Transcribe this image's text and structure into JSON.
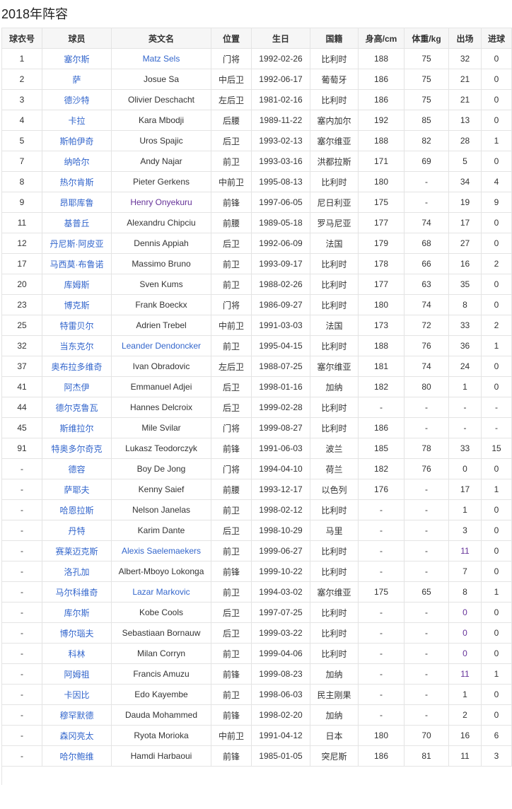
{
  "title": "2018年阵容",
  "headers": [
    "球衣号",
    "球员",
    "英文名",
    "位置",
    "生日",
    "国籍",
    "身高/cm",
    "体重/kg",
    "出场",
    "进球"
  ],
  "colors": {
    "link": "#3366cc",
    "visited": "#663399"
  },
  "rows": [
    [
      "1",
      "塞尔斯",
      "Matz Sels",
      "门将",
      "1992-02-26",
      "比利时",
      "188",
      "75",
      "32",
      "0",
      "link",
      ""
    ],
    [
      "2",
      "萨",
      "Josue Sa",
      "中后卫",
      "1992-06-17",
      "葡萄牙",
      "186",
      "75",
      "21",
      "0",
      "",
      ""
    ],
    [
      "3",
      "德沙特",
      "Olivier Deschacht",
      "左后卫",
      "1981-02-16",
      "比利时",
      "186",
      "75",
      "21",
      "0",
      "",
      ""
    ],
    [
      "4",
      "卡拉",
      "Kara Mbodji",
      "后腰",
      "1989-11-22",
      "塞内加尔",
      "192",
      "85",
      "13",
      "0",
      "",
      ""
    ],
    [
      "5",
      "斯帕伊奇",
      "Uros Spajic",
      "后卫",
      "1993-02-13",
      "塞尔维亚",
      "188",
      "82",
      "28",
      "1",
      "",
      ""
    ],
    [
      "7",
      "纳哈尔",
      "Andy Najar",
      "前卫",
      "1993-03-16",
      "洪都拉斯",
      "171",
      "69",
      "5",
      "0",
      "",
      ""
    ],
    [
      "8",
      "热尔肯斯",
      "Pieter Gerkens",
      "中前卫",
      "1995-08-13",
      "比利时",
      "180",
      "-",
      "34",
      "4",
      "",
      ""
    ],
    [
      "9",
      "昂耶库鲁",
      "Henry Onyekuru",
      "前锋",
      "1997-06-05",
      "尼日利亚",
      "175",
      "-",
      "19",
      "9",
      "visited",
      ""
    ],
    [
      "11",
      "基普丘",
      "Alexandru Chipciu",
      "前腰",
      "1989-05-18",
      "罗马尼亚",
      "177",
      "74",
      "17",
      "0",
      "",
      ""
    ],
    [
      "12",
      "丹尼斯·阿皮亚",
      "Dennis Appiah",
      "后卫",
      "1992-06-09",
      "法国",
      "179",
      "68",
      "27",
      "0",
      "",
      ""
    ],
    [
      "17",
      "马西莫·布鲁诺",
      "Massimo Bruno",
      "前卫",
      "1993-09-17",
      "比利时",
      "178",
      "66",
      "16",
      "2",
      "",
      ""
    ],
    [
      "20",
      "库姆斯",
      "Sven Kums",
      "前卫",
      "1988-02-26",
      "比利时",
      "177",
      "63",
      "35",
      "0",
      "",
      ""
    ],
    [
      "23",
      "博克斯",
      "Frank Boeckx",
      "门将",
      "1986-09-27",
      "比利时",
      "180",
      "74",
      "8",
      "0",
      "",
      ""
    ],
    [
      "25",
      "特雷贝尔",
      "Adrien Trebel",
      "中前卫",
      "1991-03-03",
      "法国",
      "173",
      "72",
      "33",
      "2",
      "",
      ""
    ],
    [
      "32",
      "当东克尔",
      "Leander Dendoncker",
      "前卫",
      "1995-04-15",
      "比利时",
      "188",
      "76",
      "36",
      "1",
      "link",
      ""
    ],
    [
      "37",
      "奥布拉多维奇",
      "Ivan Obradovic",
      "左后卫",
      "1988-07-25",
      "塞尔维亚",
      "181",
      "74",
      "24",
      "0",
      "",
      ""
    ],
    [
      "41",
      "阿杰伊",
      "Emmanuel Adjei",
      "后卫",
      "1998-01-16",
      "加纳",
      "182",
      "80",
      "1",
      "0",
      "",
      ""
    ],
    [
      "44",
      "德尔克鲁瓦",
      "Hannes Delcroix",
      "后卫",
      "1999-02-28",
      "比利时",
      "-",
      "-",
      "-",
      "-",
      "",
      ""
    ],
    [
      "45",
      "斯维拉尔",
      "Mile Svilar",
      "门将",
      "1999-08-27",
      "比利时",
      "186",
      "-",
      "-",
      "-",
      "",
      ""
    ],
    [
      "91",
      "特奥多尔奇克",
      "Lukasz Teodorczyk",
      "前锋",
      "1991-06-03",
      "波兰",
      "185",
      "78",
      "33",
      "15",
      "",
      ""
    ],
    [
      "-",
      "德容",
      "Boy De Jong",
      "门将",
      "1994-04-10",
      "荷兰",
      "182",
      "76",
      "0",
      "0",
      "",
      ""
    ],
    [
      "-",
      "萨耶夫",
      "Kenny Saief",
      "前腰",
      "1993-12-17",
      "以色列",
      "176",
      "-",
      "17",
      "1",
      "",
      ""
    ],
    [
      "-",
      "哈恩拉斯",
      "Nelson Janelas",
      "前卫",
      "1998-02-12",
      "比利时",
      "-",
      "-",
      "1",
      "0",
      "",
      ""
    ],
    [
      "-",
      "丹特",
      "Karim Dante",
      "后卫",
      "1998-10-29",
      "马里",
      "-",
      "-",
      "3",
      "0",
      "",
      ""
    ],
    [
      "-",
      "赛莱迈克斯",
      "Alexis Saelemaekers",
      "前卫",
      "1999-06-27",
      "比利时",
      "-",
      "-",
      "11",
      "0",
      "link",
      "visited"
    ],
    [
      "-",
      "洛孔加",
      "Albert-Mboyo Lokonga",
      "前锋",
      "1999-10-22",
      "比利时",
      "-",
      "-",
      "7",
      "0",
      "",
      ""
    ],
    [
      "-",
      "马尔科维奇",
      "Lazar Markovic",
      "前卫",
      "1994-03-02",
      "塞尔维亚",
      "175",
      "65",
      "8",
      "1",
      "link",
      ""
    ],
    [
      "-",
      "库尔斯",
      "Kobe Cools",
      "后卫",
      "1997-07-25",
      "比利时",
      "-",
      "-",
      "0",
      "0",
      "",
      "visited"
    ],
    [
      "-",
      "博尔瑙夫",
      "Sebastiaan Bornauw",
      "后卫",
      "1999-03-22",
      "比利时",
      "-",
      "-",
      "0",
      "0",
      "",
      "visited"
    ],
    [
      "-",
      "科林",
      "Milan Corryn",
      "前卫",
      "1999-04-06",
      "比利时",
      "-",
      "-",
      "0",
      "0",
      "",
      "visited"
    ],
    [
      "-",
      "阿姆祖",
      "Francis Amuzu",
      "前锋",
      "1999-08-23",
      "加纳",
      "-",
      "-",
      "11",
      "1",
      "",
      "visited"
    ],
    [
      "-",
      "卡因比",
      "Edo Kayembe",
      "前卫",
      "1998-06-03",
      "民主刚果",
      "-",
      "-",
      "1",
      "0",
      "",
      ""
    ],
    [
      "-",
      "穆罕默德",
      "Dauda Mohammed",
      "前锋",
      "1998-02-20",
      "加纳",
      "-",
      "-",
      "2",
      "0",
      "",
      ""
    ],
    [
      "-",
      "森冈亮太",
      "Ryota Morioka",
      "中前卫",
      "1991-04-12",
      "日本",
      "180",
      "70",
      "16",
      "6",
      "",
      ""
    ],
    [
      "-",
      "哈尔鲍维",
      "Hamdi Harbaoui",
      "前锋",
      "1985-01-05",
      "突尼斯",
      "186",
      "81",
      "11",
      "3",
      "",
      ""
    ]
  ]
}
